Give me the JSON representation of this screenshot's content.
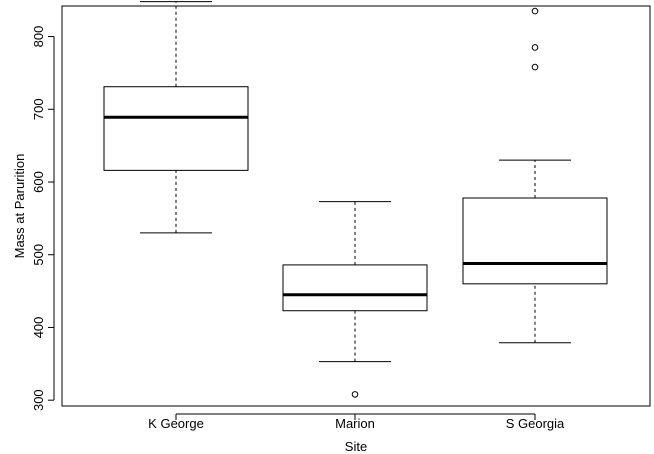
{
  "chart_data": {
    "type": "boxplot",
    "xlabel": "Site",
    "ylabel": "Mass at Parurition",
    "categories": [
      "K George",
      "Marion",
      "S Georgia"
    ],
    "ylim": [
      292,
      842
    ],
    "yticks": [
      300,
      400,
      500,
      600,
      700,
      800
    ],
    "grid": false,
    "boxes": [
      {
        "category": "K George",
        "whisker_low": 530,
        "q1": 616,
        "median": 689,
        "q3": 731,
        "whisker_high": 848,
        "outliers": []
      },
      {
        "category": "Marion",
        "whisker_low": 353,
        "q1": 423,
        "median": 445,
        "q3": 486,
        "whisker_high": 573,
        "outliers": [
          308
        ]
      },
      {
        "category": "S Georgia",
        "whisker_low": 379,
        "q1": 460,
        "median": 488,
        "q3": 578,
        "whisker_high": 630,
        "outliers": [
          758,
          785,
          835
        ]
      }
    ]
  }
}
